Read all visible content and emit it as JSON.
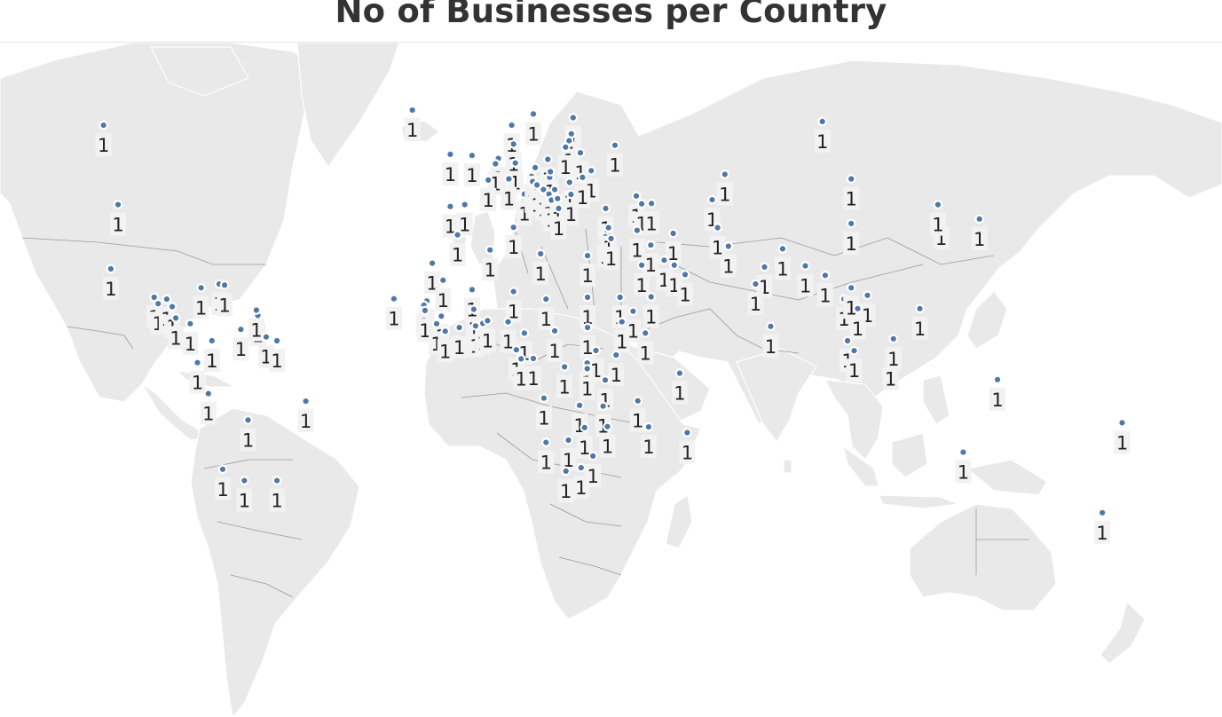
{
  "title": "No of Businesses per Country",
  "colors": {
    "marker": "#4e79a7",
    "land": "#e9e9e9",
    "water": "#ffffff",
    "label_bg": "#f2f2f2"
  },
  "markers": [
    {
      "region": "canada",
      "lon": -104,
      "lat": 61,
      "value": 1,
      "label": "1"
    },
    {
      "region": "usa",
      "lon": -100,
      "lat": 40,
      "value": 1,
      "label": "1"
    },
    {
      "region": "mexico",
      "lon": -102,
      "lat": 23,
      "value": 1,
      "label": "1"
    },
    {
      "region": "jamaica",
      "lon": -77,
      "lat": 18,
      "value": 1,
      "label": "1"
    },
    {
      "region": "haiti",
      "lon": -72,
      "lat": 19,
      "value": 1,
      "label": "1"
    },
    {
      "region": "guatemala",
      "lon": -90,
      "lat": 15.5,
      "value": 1,
      "label": "1"
    },
    {
      "region": "el-salvador",
      "lon": -88.9,
      "lat": 13.8,
      "value": 1,
      "label": "1"
    },
    {
      "region": "honduras",
      "lon": -86.5,
      "lat": 15,
      "value": 1,
      "label": "1"
    },
    {
      "region": "nicaragua",
      "lon": -85,
      "lat": 13,
      "value": 1,
      "label": "1"
    },
    {
      "region": "costa-rica",
      "lon": -84,
      "lat": 10,
      "value": 1,
      "label": "1"
    },
    {
      "region": "panama",
      "lon": -80,
      "lat": 8.5,
      "value": 1,
      "label": "1"
    },
    {
      "region": "dominican-republic",
      "lon": -70.5,
      "lat": 18.7,
      "value": 1,
      "label": "1"
    },
    {
      "region": "trinidad",
      "lon": -61.3,
      "lat": 10.7,
      "value": 1,
      "label": "1"
    },
    {
      "region": "grenada",
      "lon": -61.7,
      "lat": 12.1,
      "value": 1,
      "label": "1"
    },
    {
      "region": "venezuela",
      "lon": -66,
      "lat": 7,
      "value": 1,
      "label": "1"
    },
    {
      "region": "guyana",
      "lon": -59,
      "lat": 5,
      "value": 1,
      "label": "1"
    },
    {
      "region": "colombia",
      "lon": -74,
      "lat": 4,
      "value": 1,
      "label": "1"
    },
    {
      "region": "suriname",
      "lon": -56,
      "lat": 4,
      "value": 1,
      "label": "1"
    },
    {
      "region": "ecuador",
      "lon": -78,
      "lat": -1.8,
      "value": 1,
      "label": "1"
    },
    {
      "region": "peru",
      "lon": -75,
      "lat": -10,
      "value": 1,
      "label": "1"
    },
    {
      "region": "bolivia",
      "lon": -64,
      "lat": -17,
      "value": 1,
      "label": "1"
    },
    {
      "region": "brazil",
      "lon": -48,
      "lat": -12,
      "value": 1,
      "label": "1"
    },
    {
      "region": "chile",
      "lon": -71,
      "lat": -30,
      "value": 1,
      "label": "1"
    },
    {
      "region": "argentina",
      "lon": -65,
      "lat": -33,
      "value": 1,
      "label": "1"
    },
    {
      "region": "uruguay",
      "lon": -56,
      "lat": -33,
      "value": 1,
      "label": "1"
    },
    {
      "region": "iceland",
      "lon": -18.5,
      "lat": 65,
      "value": 1,
      "label": "1"
    },
    {
      "region": "norway",
      "lon": 9,
      "lat": 61,
      "value": 1,
      "label": "1"
    },
    {
      "region": "sweden",
      "lon": 15,
      "lat": 64,
      "value": 1,
      "label": "1"
    },
    {
      "region": "finland",
      "lon": 26,
      "lat": 63,
      "value": 1,
      "label": "1"
    },
    {
      "region": "ireland",
      "lon": -8,
      "lat": 53.3,
      "value": 1,
      "label": "1"
    },
    {
      "region": "united-kingdom",
      "lon": -2,
      "lat": 53,
      "value": 1,
      "label": "1"
    },
    {
      "region": "denmark",
      "lon": 9.5,
      "lat": 56,
      "value": 1,
      "label": "1"
    },
    {
      "region": "netherlands",
      "lon": 5.3,
      "lat": 52.2,
      "value": 1,
      "label": "1"
    },
    {
      "region": "belgium",
      "lon": 4.5,
      "lat": 50.8,
      "value": 1,
      "label": "1"
    },
    {
      "region": "france",
      "lon": 2.5,
      "lat": 46.5,
      "value": 1,
      "label": "1"
    },
    {
      "region": "germany",
      "lon": 10,
      "lat": 51,
      "value": 1,
      "label": "1"
    },
    {
      "region": "switzerland",
      "lon": 8.2,
      "lat": 46.8,
      "value": 1,
      "label": "1"
    },
    {
      "region": "austria",
      "lon": 14.5,
      "lat": 47.5,
      "value": 1,
      "label": "1"
    },
    {
      "region": "czechia",
      "lon": 15.5,
      "lat": 49.8,
      "value": 1,
      "label": "1"
    },
    {
      "region": "poland",
      "lon": 19,
      "lat": 52,
      "value": 1,
      "label": "1"
    },
    {
      "region": "estonia",
      "lon": 25.5,
      "lat": 58.7,
      "value": 1,
      "label": "1"
    },
    {
      "region": "latvia",
      "lon": 24.9,
      "lat": 56.9,
      "value": 1,
      "label": "1"
    },
    {
      "region": "lithuania",
      "lon": 23.9,
      "lat": 55.2,
      "value": 1,
      "label": "1"
    },
    {
      "region": "belarus",
      "lon": 28,
      "lat": 53.7,
      "value": 1,
      "label": "1"
    },
    {
      "region": "ukraine",
      "lon": 31,
      "lat": 49,
      "value": 1,
      "label": "1"
    },
    {
      "region": "russia-west",
      "lon": 37.6,
      "lat": 55.7,
      "value": 1,
      "label": "1"
    },
    {
      "region": "russia",
      "lon": 95,
      "lat": 62,
      "value": 1,
      "label": "1"
    },
    {
      "region": "portugal",
      "lon": -8,
      "lat": 39.5,
      "value": 1,
      "label": "1"
    },
    {
      "region": "spain",
      "lon": -4,
      "lat": 40,
      "value": 1,
      "label": "1"
    },
    {
      "region": "italy",
      "lon": 12.5,
      "lat": 42.8,
      "value": 1,
      "label": "1"
    },
    {
      "region": "slovenia",
      "lon": 14.8,
      "lat": 46.1,
      "value": 1,
      "label": "1"
    },
    {
      "region": "croatia",
      "lon": 16,
      "lat": 45.2,
      "value": 1,
      "label": "1"
    },
    {
      "region": "hungary",
      "lon": 19.5,
      "lat": 47.2,
      "value": 1,
      "label": "1"
    },
    {
      "region": "slovakia",
      "lon": 19.7,
      "lat": 48.7,
      "value": 1,
      "label": "1"
    },
    {
      "region": "romania",
      "lon": 25,
      "lat": 45.9,
      "value": 1,
      "label": "1"
    },
    {
      "region": "moldova",
      "lon": 28.6,
      "lat": 47.2,
      "value": 1,
      "label": "1"
    },
    {
      "region": "serbia",
      "lon": 20.9,
      "lat": 44,
      "value": 1,
      "label": "1"
    },
    {
      "region": "bosnia",
      "lon": 17.8,
      "lat": 44,
      "value": 1,
      "label": "1"
    },
    {
      "region": "montenegro",
      "lon": 19.3,
      "lat": 42.8,
      "value": 1,
      "label": "1"
    },
    {
      "region": "albania",
      "lon": 20,
      "lat": 41.2,
      "value": 1,
      "label": "1"
    },
    {
      "region": "macedonia",
      "lon": 21.7,
      "lat": 41.6,
      "value": 1,
      "label": "1"
    },
    {
      "region": "bulgaria",
      "lon": 25.4,
      "lat": 42.7,
      "value": 1,
      "label": "1"
    },
    {
      "region": "greece",
      "lon": 22,
      "lat": 39,
      "value": 1,
      "label": "1"
    },
    {
      "region": "turkey",
      "lon": 35,
      "lat": 39,
      "value": 1,
      "label": "1"
    },
    {
      "region": "georgia",
      "lon": 43.5,
      "lat": 42.3,
      "value": 1,
      "label": "1"
    },
    {
      "region": "armenia",
      "lon": 45,
      "lat": 40.2,
      "value": 1,
      "label": "1"
    },
    {
      "region": "azerbaijan",
      "lon": 47.7,
      "lat": 40.3,
      "value": 1,
      "label": "1"
    },
    {
      "region": "kazakhstan",
      "lon": 68,
      "lat": 48,
      "value": 1,
      "label": "1"
    },
    {
      "region": "uzbekistan",
      "lon": 64.5,
      "lat": 41.3,
      "value": 1,
      "label": "1"
    },
    {
      "region": "afghanistan",
      "lon": 66,
      "lat": 33.9,
      "value": 1,
      "label": "1"
    },
    {
      "region": "pakistan",
      "lon": 69,
      "lat": 29,
      "value": 1,
      "label": "1"
    },
    {
      "region": "india-north",
      "lon": 79,
      "lat": 23.5,
      "value": 1,
      "label": "1"
    },
    {
      "region": "india",
      "lon": 76.5,
      "lat": 19,
      "value": 1,
      "label": "1"
    },
    {
      "region": "sri-lanka",
      "lon": 80.7,
      "lat": 7.8,
      "value": 1,
      "label": "1"
    },
    {
      "region": "nepal",
      "lon": 84,
      "lat": 28.3,
      "value": 1,
      "label": "1"
    },
    {
      "region": "bangladesh",
      "lon": 90.3,
      "lat": 23.8,
      "value": 1,
      "label": "1"
    },
    {
      "region": "myanmar",
      "lon": 95.8,
      "lat": 21.3,
      "value": 1,
      "label": "1"
    },
    {
      "region": "china",
      "lon": 103,
      "lat": 35,
      "value": 1,
      "label": "1"
    },
    {
      "region": "mongolia",
      "lon": 103,
      "lat": 46.8,
      "value": 1,
      "label": "1"
    },
    {
      "region": "south-korea",
      "lon": 127.9,
      "lat": 36.4,
      "value": 1,
      "label": "1"
    },
    {
      "region": "north-korea",
      "lon": 127,
      "lat": 40,
      "value": 1,
      "label": "1"
    },
    {
      "region": "japan",
      "lon": 138.5,
      "lat": 36.2,
      "value": 1,
      "label": "1"
    },
    {
      "region": "thailand",
      "lon": 101,
      "lat": 15,
      "value": 1,
      "label": "1"
    },
    {
      "region": "laos",
      "lon": 103,
      "lat": 18,
      "value": 1,
      "label": "1"
    },
    {
      "region": "vietnam",
      "lon": 107.5,
      "lat": 16,
      "value": 1,
      "label": "1"
    },
    {
      "region": "cambodia",
      "lon": 104.8,
      "lat": 12.5,
      "value": 1,
      "label": "1"
    },
    {
      "region": "malaysia",
      "lon": 102,
      "lat": 4,
      "value": 1,
      "label": "1"
    },
    {
      "region": "singapore",
      "lon": 103.8,
      "lat": 1.35,
      "value": 1,
      "label": "1"
    },
    {
      "region": "indonesia",
      "lon": 113.9,
      "lat": -0.8,
      "value": 1,
      "label": "1"
    },
    {
      "region": "brunei",
      "lon": 114.7,
      "lat": 4.5,
      "value": 1,
      "label": "1"
    },
    {
      "region": "philippines",
      "lon": 122,
      "lat": 12.5,
      "value": 1,
      "label": "1"
    },
    {
      "region": "papua-new-guinea",
      "lon": 143.5,
      "lat": -6.3,
      "value": 1,
      "label": "1"
    },
    {
      "region": "australia",
      "lon": 134,
      "lat": -25.5,
      "value": 1,
      "label": "1"
    },
    {
      "region": "fiji",
      "lon": 178,
      "lat": -17.7,
      "value": 1,
      "label": "1"
    },
    {
      "region": "new-zealand",
      "lon": 172.5,
      "lat": -41.5,
      "value": 1,
      "label": "1"
    },
    {
      "region": "morocco",
      "lon": -6,
      "lat": 32,
      "value": 1,
      "label": "1"
    },
    {
      "region": "algeria",
      "lon": 3,
      "lat": 28,
      "value": 1,
      "label": "1"
    },
    {
      "region": "tunisia",
      "lon": 9.5,
      "lat": 34,
      "value": 1,
      "label": "1"
    },
    {
      "region": "libya",
      "lon": 17,
      "lat": 27,
      "value": 1,
      "label": "1"
    },
    {
      "region": "egypt",
      "lon": 30,
      "lat": 26.5,
      "value": 1,
      "label": "1"
    },
    {
      "region": "western-sahara",
      "lon": -13,
      "lat": 24.5,
      "value": 1,
      "label": "1"
    },
    {
      "region": "mauritania",
      "lon": -10,
      "lat": 20,
      "value": 1,
      "label": "1"
    },
    {
      "region": "mali",
      "lon": -2,
      "lat": 17.5,
      "value": 1,
      "label": "1"
    },
    {
      "region": "niger",
      "lon": 9.5,
      "lat": 17,
      "value": 1,
      "label": "1"
    },
    {
      "region": "chad",
      "lon": 18.5,
      "lat": 15,
      "value": 1,
      "label": "1"
    },
    {
      "region": "sudan",
      "lon": 30,
      "lat": 15.5,
      "value": 1,
      "label": "1"
    },
    {
      "region": "eritrea",
      "lon": 39,
      "lat": 15.5,
      "value": 1,
      "label": "1"
    },
    {
      "region": "ethiopia",
      "lon": 39.5,
      "lat": 9,
      "value": 1,
      "label": "1"
    },
    {
      "region": "djibouti",
      "lon": 42.6,
      "lat": 11.8,
      "value": 1,
      "label": "1"
    },
    {
      "region": "somalia",
      "lon": 46,
      "lat": 6,
      "value": 1,
      "label": "1"
    },
    {
      "region": "cape-verde",
      "lon": -23.6,
      "lat": 15.1,
      "value": 1,
      "label": "1"
    },
    {
      "region": "senegal",
      "lon": -14.5,
      "lat": 14.5,
      "value": 1,
      "label": "1"
    },
    {
      "region": "gambia",
      "lon": -15.3,
      "lat": 13.4,
      "value": 1,
      "label": "1"
    },
    {
      "region": "guinea-bissau",
      "lon": -15,
      "lat": 12,
      "value": 1,
      "label": "1"
    },
    {
      "region": "guinea",
      "lon": -10.5,
      "lat": 10.5,
      "value": 1,
      "label": "1"
    },
    {
      "region": "sierra-leone",
      "lon": -11.8,
      "lat": 8.5,
      "value": 1,
      "label": "1"
    },
    {
      "region": "liberia",
      "lon": -9.4,
      "lat": 6.5,
      "value": 1,
      "label": "1"
    },
    {
      "region": "cote-divoire",
      "lon": -5.5,
      "lat": 7.5,
      "value": 1,
      "label": "1"
    },
    {
      "region": "burkina-faso",
      "lon": -1.5,
      "lat": 12.3,
      "value": 1,
      "label": "1"
    },
    {
      "region": "ghana",
      "lon": -1,
      "lat": 7.9,
      "value": 1,
      "label": "1"
    },
    {
      "region": "togo",
      "lon": 1,
      "lat": 8.6,
      "value": 1,
      "label": "1"
    },
    {
      "region": "benin",
      "lon": 2.3,
      "lat": 9.3,
      "value": 1,
      "label": "1"
    },
    {
      "region": "nigeria",
      "lon": 8,
      "lat": 9,
      "value": 1,
      "label": "1"
    },
    {
      "region": "cameroon",
      "lon": 12.5,
      "lat": 6,
      "value": 1,
      "label": "1"
    },
    {
      "region": "central-african-republic",
      "lon": 20.9,
      "lat": 6.6,
      "value": 1,
      "label": "1"
    },
    {
      "region": "south-sudan",
      "lon": 30,
      "lat": 7.5,
      "value": 1,
      "label": "1"
    },
    {
      "region": "equatorial-guinea",
      "lon": 10.3,
      "lat": 1.6,
      "value": 1,
      "label": "1"
    },
    {
      "region": "gabon",
      "lon": 11.6,
      "lat": -0.8,
      "value": 1,
      "label": "1"
    },
    {
      "region": "congo",
      "lon": 15,
      "lat": -0.7,
      "value": 1,
      "label": "1"
    },
    {
      "region": "dr-congo",
      "lon": 23.6,
      "lat": -2.9,
      "value": 1,
      "label": "1"
    },
    {
      "region": "uganda",
      "lon": 32.3,
      "lat": 1.4,
      "value": 1,
      "label": "1"
    },
    {
      "region": "kenya",
      "lon": 37.9,
      "lat": 0.2,
      "value": 1,
      "label": "1"
    },
    {
      "region": "rwanda",
      "lon": 29.9,
      "lat": -1.9,
      "value": 1,
      "label": "1"
    },
    {
      "region": "burundi",
      "lon": 29.9,
      "lat": -3.4,
      "value": 1,
      "label": "1"
    },
    {
      "region": "tanzania",
      "lon": 34.9,
      "lat": -6.4,
      "value": 1,
      "label": "1"
    },
    {
      "region": "seychelles",
      "lon": 55.5,
      "lat": -4.6,
      "value": 1,
      "label": "1"
    },
    {
      "region": "angola",
      "lon": 17.9,
      "lat": -11.2,
      "value": 1,
      "label": "1"
    },
    {
      "region": "zambia",
      "lon": 27.8,
      "lat": -13.1,
      "value": 1,
      "label": "1"
    },
    {
      "region": "malawi",
      "lon": 34.3,
      "lat": -13.3,
      "value": 1,
      "label": "1"
    },
    {
      "region": "mozambique",
      "lon": 35.5,
      "lat": -18.7,
      "value": 1,
      "label": "1"
    },
    {
      "region": "zimbabwe",
      "lon": 29.2,
      "lat": -19,
      "value": 1,
      "label": "1"
    },
    {
      "region": "comoros",
      "lon": 43.9,
      "lat": -11.9,
      "value": 1,
      "label": "1"
    },
    {
      "region": "madagascar",
      "lon": 46.9,
      "lat": -18.8,
      "value": 1,
      "label": "1"
    },
    {
      "region": "mauritius",
      "lon": 57.6,
      "lat": -20.3,
      "value": 1,
      "label": "1"
    },
    {
      "region": "namibia",
      "lon": 18.5,
      "lat": -22.9,
      "value": 1,
      "label": "1"
    },
    {
      "region": "botswana",
      "lon": 24.7,
      "lat": -22.3,
      "value": 1,
      "label": "1"
    },
    {
      "region": "south-africa",
      "lon": 24,
      "lat": -30.5,
      "value": 1,
      "label": "1"
    },
    {
      "region": "lesotho",
      "lon": 28.2,
      "lat": -29.6,
      "value": 1,
      "label": "1"
    },
    {
      "region": "eswatini",
      "lon": 31.5,
      "lat": -26.5,
      "value": 1,
      "label": "1"
    },
    {
      "region": "israel",
      "lon": 34.9,
      "lat": 31.5,
      "value": 1,
      "label": "1"
    },
    {
      "region": "lebanon",
      "lon": 35.8,
      "lat": 33.9,
      "value": 1,
      "label": "1"
    },
    {
      "region": "jordan",
      "lon": 36.5,
      "lat": 31,
      "value": 1,
      "label": "1"
    },
    {
      "region": "iraq",
      "lon": 43.7,
      "lat": 33.2,
      "value": 1,
      "label": "1"
    },
    {
      "region": "iran",
      "lon": 53.7,
      "lat": 32.4,
      "value": 1,
      "label": "1"
    },
    {
      "region": "kuwait",
      "lon": 47.5,
      "lat": 29.3,
      "value": 1,
      "label": "1"
    },
    {
      "region": "saudi-arabia",
      "lon": 45,
      "lat": 24,
      "value": 1,
      "label": "1"
    },
    {
      "region": "qatar",
      "lon": 51.2,
      "lat": 25.3,
      "value": 1,
      "label": "1"
    },
    {
      "region": "uae",
      "lon": 54,
      "lat": 24,
      "value": 1,
      "label": "1"
    },
    {
      "region": "oman",
      "lon": 57,
      "lat": 21.5,
      "value": 1,
      "label": "1"
    },
    {
      "region": "yemen",
      "lon": 47.6,
      "lat": 15.6,
      "value": 1,
      "label": "1"
    }
  ]
}
